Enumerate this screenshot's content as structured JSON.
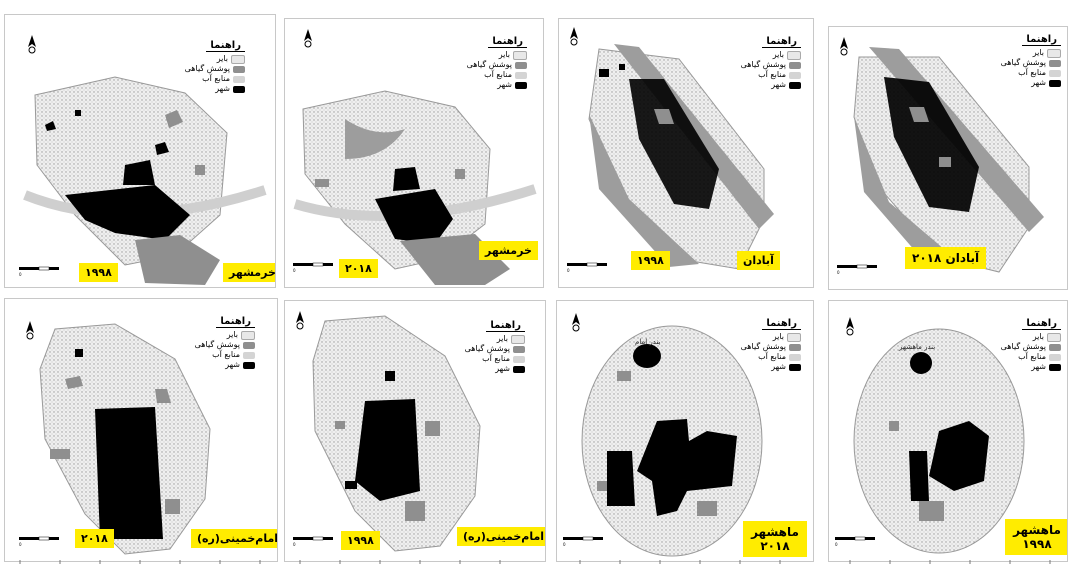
{
  "legend": {
    "title": "راهنما",
    "items": [
      {
        "label": "بایر",
        "color": "#e8e8e8"
      },
      {
        "label": "پوشش گیاهی",
        "color": "#8f8f8f"
      },
      {
        "label": "منابع آب",
        "color": "#d4d4d4"
      },
      {
        "label": "شهر",
        "color": "#000000"
      }
    ]
  },
  "panels": [
    {
      "id": "p1",
      "labels": [
        "خرمشهر",
        "۱۹۹۸"
      ]
    },
    {
      "id": "p2",
      "labels": [
        "خرمشهر",
        "۲۰۱۸"
      ]
    },
    {
      "id": "p3",
      "labels": [
        "آبادان",
        "۱۹۹۸"
      ]
    },
    {
      "id": "p4",
      "labels": [
        "آبادان ۲۰۱۸"
      ]
    },
    {
      "id": "p5",
      "labels": [
        "امام‌خمینی(ره)",
        "۲۰۱۸"
      ]
    },
    {
      "id": "p6",
      "labels": [
        "امام‌خمینی(ره)",
        "۱۹۹۸"
      ]
    },
    {
      "id": "p7",
      "labels": [
        "ماهشهر ۲۰۱۸"
      ]
    },
    {
      "id": "p8",
      "labels": [
        "ماهشهر ۱۹۹۸"
      ]
    }
  ],
  "places": [
    "بندر امام",
    "بندر ماهشهر"
  ],
  "colors": {
    "barren": "#e8e8e8",
    "vegetation": "#8f8f8f",
    "water": "#d4d4d4",
    "city": "#000000",
    "label_bg": "#ffec00"
  },
  "icons": [
    "north-arrow-icon",
    "scale-bar-icon"
  ]
}
